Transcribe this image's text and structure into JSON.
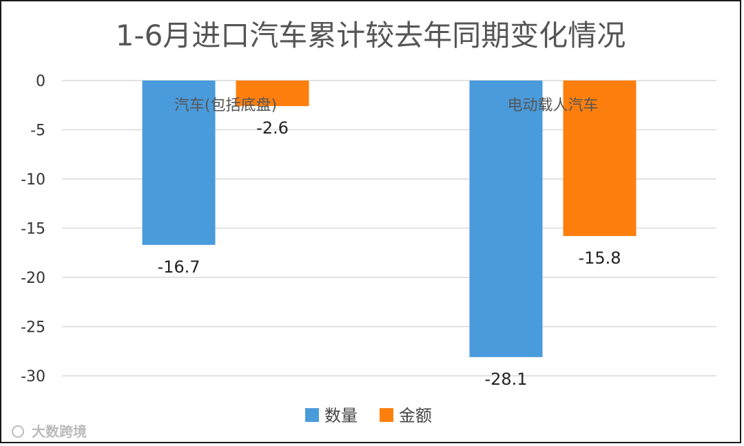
{
  "chart_data": {
    "type": "bar",
    "title": "1-6月进口汽车累计较去年同期变化情况",
    "categories": [
      "汽车(包括底盘)",
      "电动载人汽车"
    ],
    "series": [
      {
        "name": "数量",
        "values": [
          -16.7,
          -28.1
        ],
        "color": "#4a9bdc"
      },
      {
        "name": "金额",
        "values": [
          -2.6,
          -15.8
        ],
        "color": "#ff7f0e"
      }
    ],
    "ylim": [
      -30,
      0
    ],
    "yticks": [
      0,
      -5,
      -10,
      -15,
      -20,
      -25,
      -30
    ],
    "grid": true,
    "legend": "bottom"
  },
  "watermark": "大数跨境"
}
